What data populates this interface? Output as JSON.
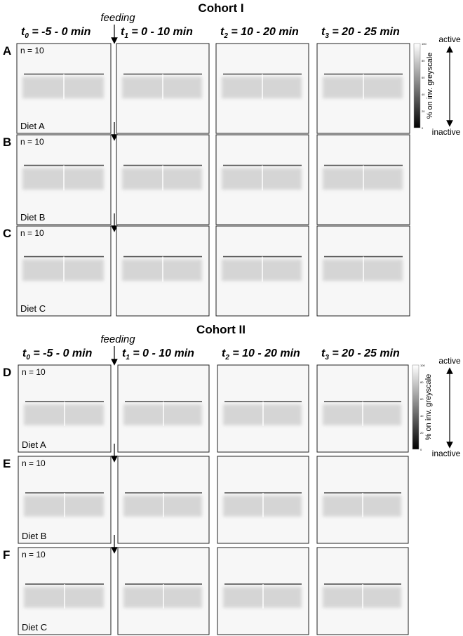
{
  "cohorts": [
    {
      "title": "Cohort I",
      "feeding": "feeding",
      "headers": [
        {
          "t": "t",
          "sub": "0",
          "rest": " = -5 - 0 min"
        },
        {
          "t": "t",
          "sub": "1",
          "rest": " = 0 - 10 min"
        },
        {
          "t": "t",
          "sub": "2",
          "rest": " = 10 - 20 min"
        },
        {
          "t": "t",
          "sub": "3",
          "rest": " =  20 - 25 min"
        }
      ],
      "colorbar": {
        "label": "% on inv. greyscale",
        "ticks": [
          "100",
          "80",
          "60",
          "40",
          "20",
          "0"
        ],
        "top": "active",
        "bottom": "inactive"
      },
      "rows": [
        {
          "letter": "A",
          "n": "n = 10",
          "diet": "Diet A"
        },
        {
          "letter": "B",
          "n": "n = 10",
          "diet": "Diet B"
        },
        {
          "letter": "C",
          "n": "n = 10",
          "diet": "Diet C"
        }
      ]
    },
    {
      "title": "Cohort II",
      "feeding": "feeding",
      "headers": [
        {
          "t": "t",
          "sub": "0",
          "rest": " = -5 - 0 min"
        },
        {
          "t": "t",
          "sub": "1",
          "rest": " = 0 - 10 min"
        },
        {
          "t": "t",
          "sub": "2",
          "rest": " = 10 - 20 min"
        },
        {
          "t": "t",
          "sub": "3",
          "rest": " =  20 - 25 min"
        }
      ],
      "colorbar": {
        "label": "% on inv. greyscale",
        "ticks": [
          "100",
          "80",
          "60",
          "40",
          "20",
          "0"
        ],
        "top": "active",
        "bottom": "inactive"
      },
      "rows": [
        {
          "letter": "D",
          "n": "n = 10",
          "diet": "Diet A"
        },
        {
          "letter": "E",
          "n": "n = 10",
          "diet": "Diet B"
        },
        {
          "letter": "F",
          "n": "n = 10",
          "diet": "Diet C"
        }
      ]
    }
  ]
}
